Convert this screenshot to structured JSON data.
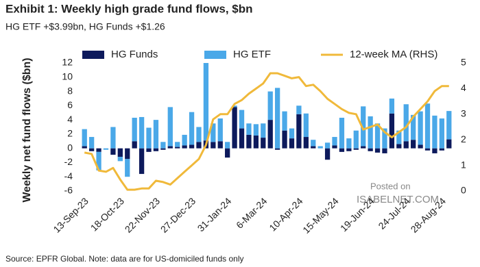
{
  "chart_data": {
    "type": "bar_line",
    "title": "Exhibit 1: Weekly high grade fund flows, $bn",
    "subtitle": "HG ETF +$3.99bn, HG Funds +$1.26",
    "y_label": "Weekly net fund flows ($bn)",
    "source": "Source: EPFR Global. Note: data are for US-domiciled funds only",
    "annotations": [
      "Posted on",
      "ISABELNET.COM"
    ],
    "categories": [
      "13-Sep-23",
      null,
      null,
      null,
      null,
      "18-Oct-23",
      null,
      null,
      null,
      null,
      "22-Nov-23",
      null,
      null,
      null,
      null,
      "27-Dec-23",
      null,
      null,
      null,
      null,
      "31-Jan-24",
      null,
      null,
      null,
      null,
      "6-Mar-24",
      null,
      null,
      null,
      null,
      "10-Apr-24",
      null,
      null,
      null,
      null,
      "15-May-24",
      null,
      null,
      null,
      null,
      "19-Jun-24",
      null,
      null,
      null,
      null,
      "24-Jul-24",
      null,
      null,
      null,
      null,
      "28-Aug-24",
      null
    ],
    "series": [
      {
        "name": "HG Funds",
        "color": "#0d1a5c",
        "kind": "bar",
        "values": [
          0.3,
          -0.4,
          -0.5,
          0,
          -0.9,
          -1.2,
          -1.5,
          1.0,
          -3.6,
          -0.5,
          -0.4,
          -0.2,
          0.3,
          0.2,
          0.4,
          0.5,
          0.9,
          1.1,
          0.9,
          1.0,
          -1.3,
          5.8,
          2.8,
          1.9,
          1.8,
          1.5,
          4.0,
          -0.2,
          2.5,
          1.4,
          4.8,
          1.6,
          0.3,
          0,
          -1.6,
          0.4,
          -0.5,
          -0.4,
          -0.2,
          0.3,
          -0.4,
          -0.6,
          -0.7,
          4.9,
          0.6,
          1.0,
          1.2,
          0.5,
          -0.3,
          -0.7,
          -0.3,
          1.26
        ]
      },
      {
        "name": "HG ETF",
        "color": "#4aa8e8",
        "kind": "bar",
        "values": [
          2.4,
          1.6,
          -2.6,
          -0.2,
          3.0,
          -0.6,
          -2.5,
          3.3,
          4.4,
          2.9,
          4.0,
          0.9,
          5.5,
          0.7,
          1.5,
          4.6,
          2.1,
          10.9,
          2.6,
          3.2,
          0.9,
          0.2,
          2.6,
          1.6,
          1.6,
          2.0,
          4.0,
          8.5,
          2.7,
          1.4,
          1.2,
          3.3,
          0.9,
          0.3,
          0.8,
          1.2,
          4.3,
          1.4,
          2.5,
          5.6,
          4.5,
          3.5,
          2.8,
          2.1,
          1.9,
          5.2,
          3.5,
          4.7,
          6.3,
          4.6,
          4.2,
          3.99
        ]
      },
      {
        "name": "12-week MA (RHS)",
        "color": "#f0b93a",
        "kind": "line",
        "axis": "y2",
        "values": [
          1.5,
          1.45,
          0.8,
          0.75,
          0.9,
          0.45,
          0.05,
          0.05,
          0.1,
          0.1,
          0.4,
          0.35,
          0.25,
          0.5,
          0.75,
          1.0,
          1.25,
          1.8,
          2.8,
          3.0,
          3.0,
          3.4,
          3.55,
          3.8,
          4.0,
          4.2,
          4.6,
          4.6,
          4.5,
          4.4,
          4.45,
          4.1,
          4.15,
          3.9,
          3.6,
          3.4,
          3.2,
          3.05,
          3.0,
          2.4,
          2.5,
          2.6,
          2.3,
          2.1,
          2.3,
          2.5,
          2.9,
          3.2,
          3.5,
          3.9,
          4.1,
          4.1
        ]
      }
    ],
    "ylim": [
      -6,
      12
    ],
    "yticks": [
      -6,
      -4,
      -2,
      0,
      2,
      4,
      6,
      8,
      10,
      12
    ],
    "y2lim": [
      0,
      5
    ],
    "y2ticks": [
      0,
      1,
      2,
      3,
      4,
      5
    ]
  }
}
